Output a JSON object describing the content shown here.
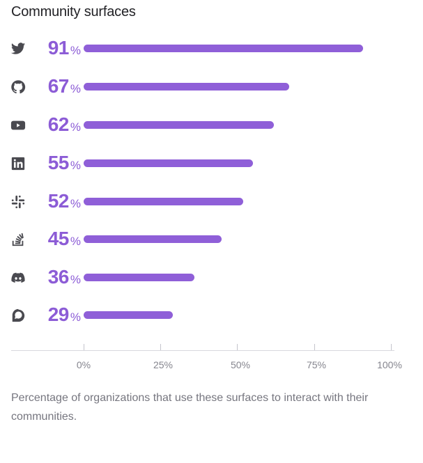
{
  "title": "Community surfaces",
  "caption": "Percentage of organizations that use these surfaces to interact with their communities.",
  "colors": {
    "bar": "#8f5fd8",
    "value_text": "#8c5cd6",
    "icon": "#4a4a50",
    "title": "#222226",
    "axis": "#d8d8de",
    "tick_label": "#85858e",
    "caption": "#76767f"
  },
  "rows": [
    {
      "platform": "Twitter",
      "icon": "twitter-icon",
      "value": "91",
      "unit": "%"
    },
    {
      "platform": "GitHub",
      "icon": "github-icon",
      "value": "67",
      "unit": "%"
    },
    {
      "platform": "YouTube",
      "icon": "youtube-icon",
      "value": "62",
      "unit": "%"
    },
    {
      "platform": "LinkedIn",
      "icon": "linkedin-icon",
      "value": "55",
      "unit": "%"
    },
    {
      "platform": "Slack",
      "icon": "slack-icon",
      "value": "52",
      "unit": "%"
    },
    {
      "platform": "Stack Overflow",
      "icon": "stackoverflow-icon",
      "value": "45",
      "unit": "%"
    },
    {
      "platform": "Discord",
      "icon": "discord-icon",
      "value": "36",
      "unit": "%"
    },
    {
      "platform": "Discourse",
      "icon": "discourse-icon",
      "value": "29",
      "unit": "%"
    }
  ],
  "axis": {
    "ticks": [
      "0%",
      "25%",
      "50%",
      "75%",
      "100%"
    ]
  },
  "chart_data": {
    "type": "bar",
    "orientation": "horizontal",
    "title": "Community surfaces",
    "categories": [
      "Twitter",
      "GitHub",
      "YouTube",
      "LinkedIn",
      "Slack",
      "Stack Overflow",
      "Discord",
      "Discourse"
    ],
    "values": [
      91,
      67,
      62,
      55,
      52,
      45,
      36,
      29
    ],
    "xlabel": "",
    "ylabel": "",
    "xlim": [
      0,
      100
    ],
    "x_ticks": [
      "0%",
      "25%",
      "50%",
      "75%",
      "100%"
    ],
    "grid": false,
    "legend": null,
    "caption": "Percentage of organizations that use these surfaces to interact with their communities."
  }
}
